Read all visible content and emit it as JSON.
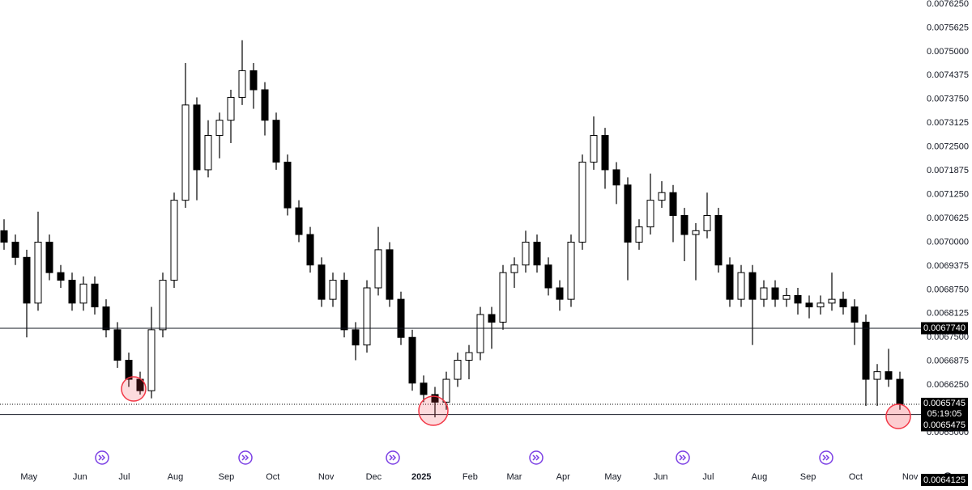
{
  "chart_data": {
    "type": "candlestick",
    "categories": [
      null,
      null,
      null,
      null,
      null,
      null,
      null,
      null,
      null,
      null,
      null,
      null,
      null,
      null,
      null,
      null,
      null,
      null,
      null,
      null,
      null,
      null,
      null,
      null,
      null,
      null,
      null,
      null,
      null,
      null,
      null,
      null,
      null,
      null,
      null,
      null,
      null,
      null,
      null,
      null,
      null,
      null,
      null,
      null,
      null,
      null,
      null,
      null,
      null,
      null,
      null,
      null,
      null,
      null,
      null,
      null,
      null,
      null,
      null,
      null,
      null,
      null,
      null,
      null,
      null,
      null,
      null,
      null,
      null,
      null,
      null,
      null,
      null,
      null,
      null,
      null,
      null,
      null,
      null,
      null
    ],
    "open": [
      0.00703,
      0.007,
      0.00696,
      0.00684,
      0.007,
      0.00692,
      0.0069,
      0.00684,
      0.00689,
      0.00683,
      0.00677,
      0.00669,
      0.00664,
      0.00661,
      0.00677,
      0.0069,
      0.00711,
      0.00736,
      0.00719,
      0.00728,
      0.00732,
      0.00738,
      0.00745,
      0.0074,
      0.00732,
      0.00721,
      0.00709,
      0.00702,
      0.00694,
      0.00685,
      0.0069,
      0.00677,
      0.00673,
      0.00688,
      0.00698,
      0.00685,
      0.00675,
      0.00663,
      0.0066,
      0.00658,
      0.00664,
      0.00669,
      0.00671,
      0.00681,
      0.00679,
      0.00692,
      0.00694,
      0.007,
      0.00694,
      0.00688,
      0.00685,
      0.007,
      0.00721,
      0.00728,
      0.00719,
      0.00715,
      0.007,
      0.00704,
      0.00711,
      0.00713,
      0.00707,
      0.00702,
      0.00703,
      0.00707,
      0.00694,
      0.00685,
      0.00692,
      0.00685,
      0.00688,
      0.00685,
      0.00686,
      0.00684,
      0.00683,
      0.00684,
      0.00685,
      0.00683,
      0.00679,
      0.00664,
      0.00666,
      0.00664
    ],
    "high": [
      0.00706,
      0.00702,
      0.00698,
      0.00708,
      0.00702,
      0.00694,
      0.00692,
      0.00691,
      0.00691,
      0.00685,
      0.00679,
      0.00671,
      0.00666,
      0.00683,
      0.00692,
      0.00713,
      0.00747,
      0.00738,
      0.00732,
      0.00734,
      0.0074,
      0.00753,
      0.00747,
      0.00742,
      0.00734,
      0.00723,
      0.00711,
      0.00704,
      0.00696,
      0.00692,
      0.00692,
      0.00679,
      0.0069,
      0.00704,
      0.007,
      0.00687,
      0.00677,
      0.00665,
      0.00662,
      0.00666,
      0.00671,
      0.00673,
      0.00683,
      0.00683,
      0.00694,
      0.00696,
      0.00703,
      0.00702,
      0.00696,
      0.0069,
      0.00702,
      0.00723,
      0.00733,
      0.0073,
      0.00721,
      0.00717,
      0.00706,
      0.00718,
      0.00716,
      0.00715,
      0.00709,
      0.00705,
      0.00713,
      0.00709,
      0.00696,
      0.00694,
      0.00694,
      0.0069,
      0.0069,
      0.00688,
      0.00688,
      0.00686,
      0.00686,
      0.00692,
      0.00687,
      0.00685,
      0.00681,
      0.00668,
      0.00672,
      0.00666
    ],
    "low": [
      0.00698,
      0.00694,
      0.00675,
      0.00682,
      0.0069,
      0.00688,
      0.00682,
      0.00682,
      0.00681,
      0.00675,
      0.00667,
      0.00662,
      0.0066,
      0.00659,
      0.00675,
      0.00688,
      0.00709,
      0.00711,
      0.00717,
      0.00722,
      0.00726,
      0.00736,
      0.00735,
      0.00728,
      0.00719,
      0.00707,
      0.007,
      0.00692,
      0.00683,
      0.00683,
      0.00675,
      0.00669,
      0.00671,
      0.00686,
      0.00683,
      0.00673,
      0.00661,
      0.00658,
      0.00654,
      0.00656,
      0.00662,
      0.00664,
      0.00669,
      0.00672,
      0.00677,
      0.00688,
      0.00692,
      0.00692,
      0.00686,
      0.00682,
      0.00683,
      0.00698,
      0.00719,
      0.00714,
      0.0071,
      0.0069,
      0.00698,
      0.00702,
      0.00709,
      0.007,
      0.00695,
      0.0069,
      0.00701,
      0.00692,
      0.00683,
      0.00683,
      0.00673,
      0.00683,
      0.00683,
      0.00683,
      0.00681,
      0.0068,
      0.00681,
      0.00682,
      0.00681,
      0.00673,
      0.00657,
      0.00657,
      0.00662,
      0.00656
    ],
    "close": [
      0.007,
      0.00696,
      0.00684,
      0.007,
      0.00692,
      0.0069,
      0.00684,
      0.00689,
      0.00683,
      0.00677,
      0.00669,
      0.00664,
      0.00661,
      0.00677,
      0.0069,
      0.00711,
      0.00736,
      0.00719,
      0.00728,
      0.00732,
      0.00738,
      0.00745,
      0.0074,
      0.00732,
      0.00721,
      0.00709,
      0.00702,
      0.00694,
      0.00685,
      0.0069,
      0.00677,
      0.00673,
      0.00688,
      0.00698,
      0.00685,
      0.00675,
      0.00663,
      0.0066,
      0.00658,
      0.00664,
      0.00669,
      0.00671,
      0.00681,
      0.00679,
      0.00692,
      0.00694,
      0.007,
      0.00694,
      0.00688,
      0.00685,
      0.007,
      0.00721,
      0.00728,
      0.00719,
      0.00715,
      0.007,
      0.00704,
      0.00711,
      0.00713,
      0.00707,
      0.00702,
      0.00703,
      0.00707,
      0.00694,
      0.00685,
      0.00692,
      0.00685,
      0.00688,
      0.00685,
      0.00686,
      0.00684,
      0.00683,
      0.00684,
      0.00685,
      0.00683,
      0.00679,
      0.00664,
      0.00666,
      0.00664,
      0.0065745
    ],
    "ylim": [
      0.00636,
      0.0076356
    ],
    "yticks": [
      {
        "value": 0.007625,
        "label": "0.0076250"
      },
      {
        "value": 0.0075625,
        "label": "0.0075625"
      },
      {
        "value": 0.0075,
        "label": "0.0075000"
      },
      {
        "value": 0.0074375,
        "label": "0.0074375"
      },
      {
        "value": 0.007375,
        "label": "0.0073750"
      },
      {
        "value": 0.0073125,
        "label": "0.0073125"
      },
      {
        "value": 0.00725,
        "label": "0.0072500"
      },
      {
        "value": 0.0071875,
        "label": "0.0071875"
      },
      {
        "value": 0.007125,
        "label": "0.0071250"
      },
      {
        "value": 0.0070625,
        "label": "0.0070625"
      },
      {
        "value": 0.007,
        "label": "0.0070000"
      },
      {
        "value": 0.0069375,
        "label": "0.0069375"
      },
      {
        "value": 0.006875,
        "label": "0.0068750"
      },
      {
        "value": 0.0068125,
        "label": "0.0068125"
      },
      {
        "value": 0.00675,
        "label": "0.0067500"
      },
      {
        "value": 0.0066875,
        "label": "0.0066875"
      },
      {
        "value": 0.006625,
        "label": "0.0066250"
      },
      {
        "value": 0.0065,
        "label": "0.0065000"
      }
    ],
    "xticks": [
      {
        "value": 2.2,
        "label": "May"
      },
      {
        "value": 6.7,
        "label": "Jun"
      },
      {
        "value": 10.6,
        "label": "Jul"
      },
      {
        "value": 15.1,
        "label": "Aug"
      },
      {
        "value": 19.6,
        "label": "Sep"
      },
      {
        "value": 23.7,
        "label": "Oct"
      },
      {
        "value": 28.4,
        "label": "Nov"
      },
      {
        "value": 32.6,
        "label": "Dec"
      },
      {
        "value": 36.8,
        "label": "2025"
      },
      {
        "value": 41.1,
        "label": "Feb"
      },
      {
        "value": 45,
        "label": "Mar"
      },
      {
        "value": 49.3,
        "label": "Apr"
      },
      {
        "value": 53.7,
        "label": "May"
      },
      {
        "value": 57.9,
        "label": "Jun"
      },
      {
        "value": 62.1,
        "label": "Jul"
      },
      {
        "value": 66.6,
        "label": "Aug"
      },
      {
        "value": 70.9,
        "label": "Sep"
      },
      {
        "value": 75.1,
        "label": "Oct"
      },
      {
        "value": 79.9,
        "label": "Nov"
      }
    ],
    "hlines": [
      {
        "value": 0.006774,
        "label": "0.0067740"
      },
      0.0065475
    ],
    "countdown": "05:19:05",
    "cursor_label": "0.0064125",
    "up_color": "#ffffff",
    "down_color": "#000000",
    "grid": false
  }
}
